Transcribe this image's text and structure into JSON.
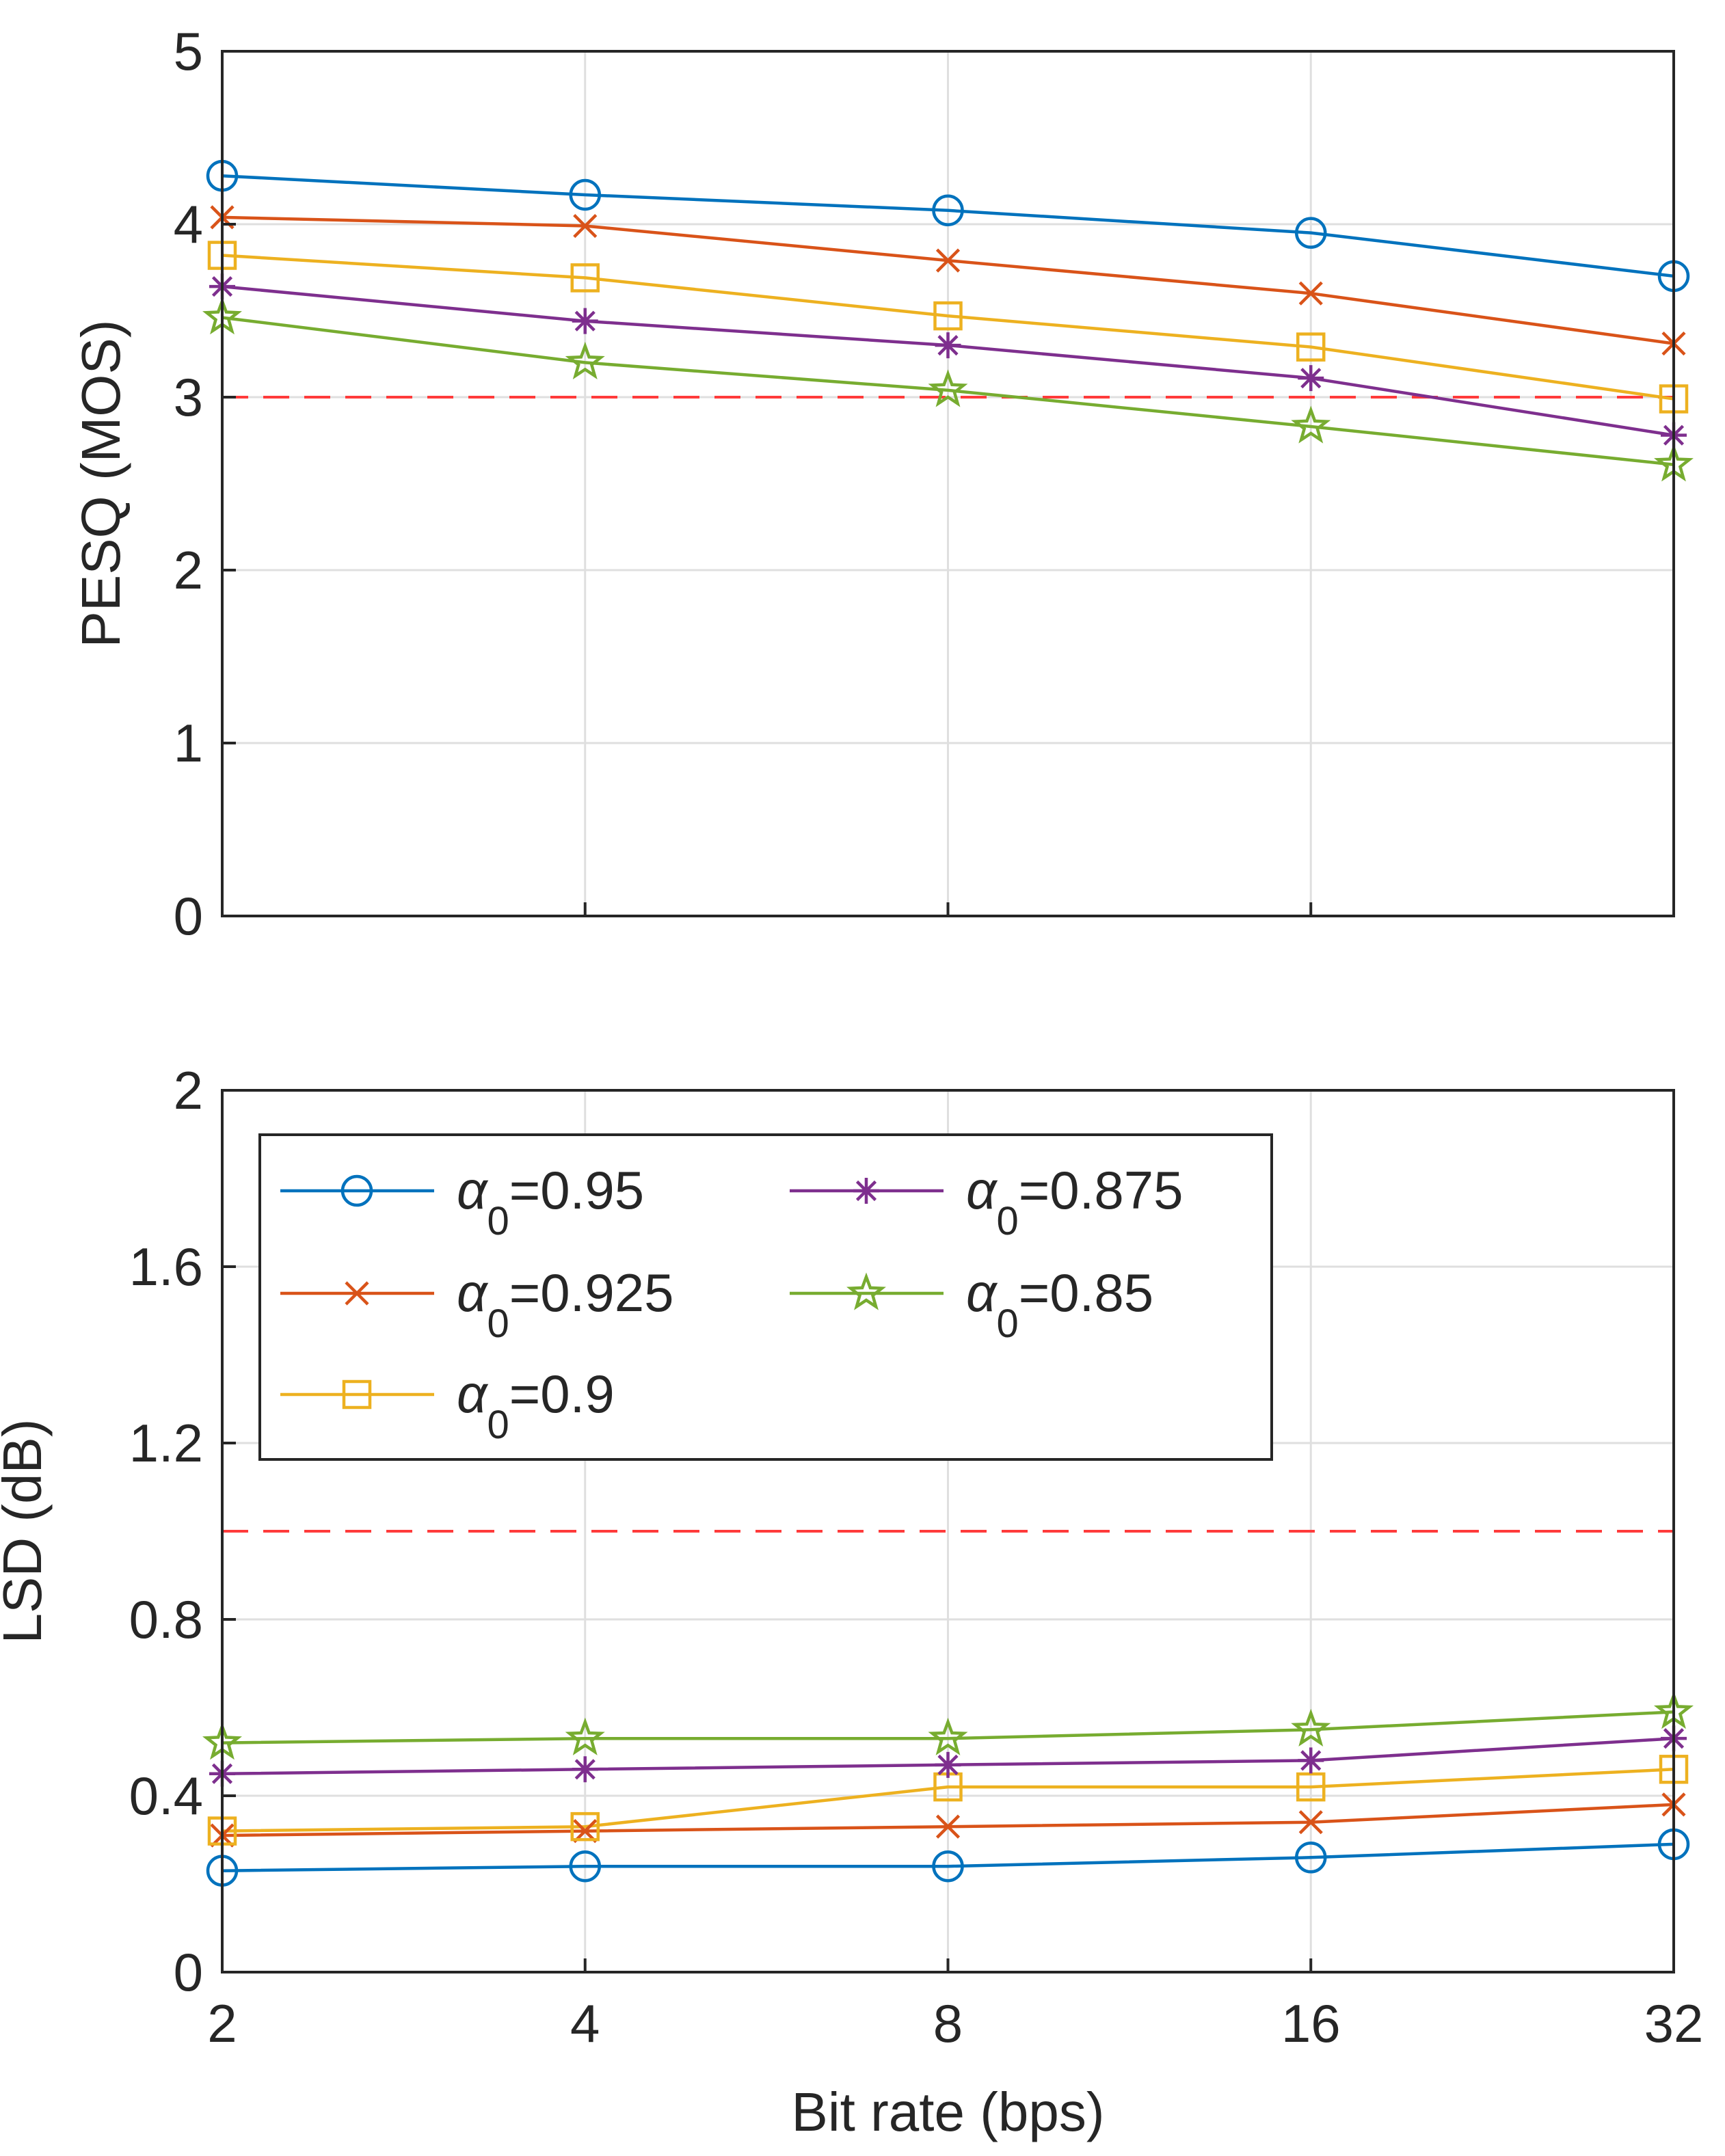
{
  "chart_data": [
    {
      "type": "line",
      "x_ticks": [
        "2",
        "4",
        "8",
        "16",
        "32"
      ],
      "x": [
        2,
        4,
        8,
        16,
        32
      ],
      "xscale": "log2",
      "ylabel": "PESQ (MOS)",
      "ylim": [
        0,
        5
      ],
      "y_ticks": [
        "0",
        "1",
        "2",
        "3",
        "4",
        "5"
      ],
      "grid": true,
      "reference_line": {
        "y": 3,
        "style": "dashed",
        "color": "#ff3b3b"
      },
      "series": [
        {
          "name": "α0=0.95",
          "color": "#0072bd",
          "marker": "circle",
          "values": [
            4.28,
            4.17,
            4.08,
            3.95,
            3.7
          ]
        },
        {
          "name": "α0=0.925",
          "color": "#d95319",
          "marker": "x",
          "values": [
            4.04,
            3.99,
            3.79,
            3.6,
            3.31
          ]
        },
        {
          "name": "α0=0.9",
          "color": "#edb120",
          "marker": "square",
          "values": [
            3.82,
            3.69,
            3.47,
            3.29,
            2.99
          ]
        },
        {
          "name": "α0=0.875",
          "color": "#7e2f8e",
          "marker": "asterisk",
          "values": [
            3.64,
            3.44,
            3.3,
            3.11,
            2.78
          ]
        },
        {
          "name": "α0=0.85",
          "color": "#77ac30",
          "marker": "star",
          "values": [
            3.46,
            3.2,
            3.04,
            2.83,
            2.61
          ]
        }
      ]
    },
    {
      "type": "line",
      "x_ticks": [
        "2",
        "4",
        "8",
        "16",
        "32"
      ],
      "x": [
        2,
        4,
        8,
        16,
        32
      ],
      "xscale": "log2",
      "xlabel": "Bit rate (bps)",
      "ylabel": "LSD (dB)",
      "ylim": [
        0,
        2
      ],
      "y_ticks": [
        "0",
        "0.4",
        "0.8",
        "1.2",
        "1.6",
        "2"
      ],
      "grid": true,
      "legend_location": "top-left",
      "legend_columns": 2,
      "reference_line": {
        "y": 1.0,
        "style": "dashed",
        "color": "#ff3b3b"
      },
      "series": [
        {
          "name": "α0=0.95",
          "color": "#0072bd",
          "marker": "circle",
          "values": [
            0.23,
            0.24,
            0.24,
            0.26,
            0.29
          ]
        },
        {
          "name": "α0=0.925",
          "color": "#d95319",
          "marker": "x",
          "values": [
            0.31,
            0.32,
            0.33,
            0.34,
            0.38
          ]
        },
        {
          "name": "α0=0.9",
          "color": "#edb120",
          "marker": "square",
          "values": [
            0.32,
            0.33,
            0.42,
            0.42,
            0.46
          ]
        },
        {
          "name": "α0=0.875",
          "color": "#7e2f8e",
          "marker": "asterisk",
          "values": [
            0.45,
            0.46,
            0.47,
            0.48,
            0.53
          ]
        },
        {
          "name": "α0=0.85",
          "color": "#77ac30",
          "marker": "star",
          "values": [
            0.52,
            0.53,
            0.53,
            0.55,
            0.59
          ]
        }
      ],
      "legend": [
        {
          "symbol": "α",
          "subscript": "0",
          "value": "=0.95",
          "color": "#0072bd",
          "marker": "circle"
        },
        {
          "symbol": "α",
          "subscript": "0",
          "value": "=0.875",
          "color": "#7e2f8e",
          "marker": "asterisk"
        },
        {
          "symbol": "α",
          "subscript": "0",
          "value": "=0.925",
          "color": "#d95319",
          "marker": "x"
        },
        {
          "symbol": "α",
          "subscript": "0",
          "value": "=0.85",
          "color": "#77ac30",
          "marker": "star"
        },
        {
          "symbol": "α",
          "subscript": "0",
          "value": "=0.9",
          "color": "#edb120",
          "marker": "square"
        }
      ]
    }
  ]
}
